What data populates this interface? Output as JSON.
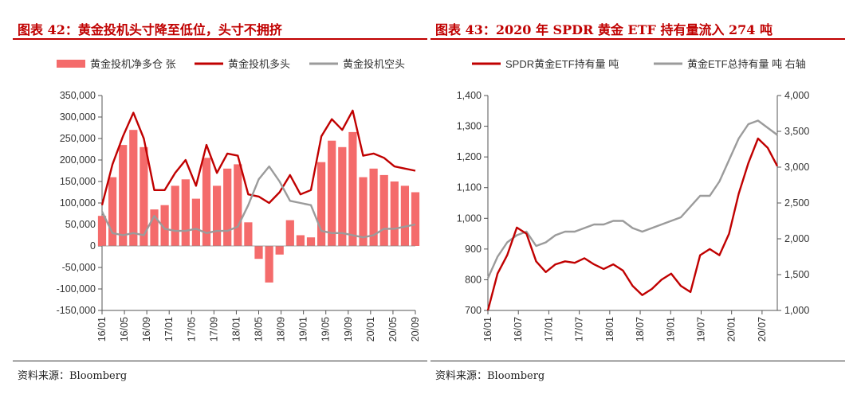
{
  "left": {
    "title": "图表 42：黄金投机头寸降至低位，头寸不拥挤",
    "source": "资料来源：Bloomberg",
    "colors": {
      "net": "#f46b6b",
      "long": "#c00000",
      "short": "#9b9b9b"
    },
    "chart_data": {
      "type": "area+line",
      "title": "图表 42：黄金投机头寸降至低位，头寸不拥挤",
      "legend": [
        "黄金投机净多仓 张",
        "黄金投机多头",
        "黄金投机空头"
      ],
      "legend_position": "top",
      "ylim": [
        -150000,
        350000
      ],
      "y_ticks": [
        "350,000",
        "300,000",
        "250,000",
        "200,000",
        "150,000",
        "100,000",
        "50,000",
        "0",
        "-50,000",
        "-100,000",
        "-150,000"
      ],
      "x_ticks": [
        "16/01",
        "16/05",
        "16/09",
        "17/01",
        "17/05",
        "17/09",
        "18/01",
        "18/05",
        "18/09",
        "19/01",
        "19/05",
        "19/09",
        "20/01",
        "20/05",
        "20/09"
      ],
      "x": [
        "16/01",
        "16/03",
        "16/05",
        "16/07",
        "16/09",
        "16/11",
        "17/01",
        "17/03",
        "17/05",
        "17/07",
        "17/09",
        "17/11",
        "18/01",
        "18/03",
        "18/05",
        "18/07",
        "18/09",
        "18/11",
        "19/01",
        "19/03",
        "19/05",
        "19/07",
        "19/09",
        "19/11",
        "20/01",
        "20/03",
        "20/05",
        "20/07",
        "20/09",
        "20/11",
        "21/01"
      ],
      "series": [
        {
          "name": "黄金投机净多仓 张",
          "values": [
            70000,
            160000,
            235000,
            270000,
            230000,
            85000,
            95000,
            140000,
            155000,
            110000,
            205000,
            140000,
            180000,
            190000,
            55000,
            -30000,
            -85000,
            -20000,
            60000,
            25000,
            20000,
            195000,
            245000,
            230000,
            265000,
            160000,
            180000,
            165000,
            150000,
            140000,
            125000
          ]
        },
        {
          "name": "黄金投机多头",
          "values": [
            95000,
            190000,
            255000,
            310000,
            250000,
            130000,
            130000,
            170000,
            200000,
            140000,
            235000,
            170000,
            215000,
            210000,
            120000,
            115000,
            100000,
            125000,
            165000,
            120000,
            130000,
            255000,
            295000,
            270000,
            315000,
            210000,
            215000,
            205000,
            185000,
            180000,
            175000
          ]
        },
        {
          "name": "黄金投机空头",
          "values": [
            80000,
            30000,
            25000,
            30000,
            25000,
            70000,
            40000,
            35000,
            35000,
            40000,
            30000,
            35000,
            35000,
            45000,
            95000,
            155000,
            185000,
            150000,
            105000,
            100000,
            95000,
            35000,
            30000,
            30000,
            25000,
            20000,
            25000,
            40000,
            40000,
            45000,
            50000
          ]
        }
      ]
    }
  },
  "right": {
    "title": "图表 43：2020 年 SPDR 黄金 ETF 持有量流入 274 吨",
    "source": "资料来源：Bloomberg",
    "colors": {
      "spdr": "#c00000",
      "total": "#9b9b9b"
    },
    "chart_data": {
      "type": "line",
      "title": "图表 43：2020 年 SPDR 黄金 ETF 持有量流入 274 吨",
      "legend": [
        "SPDR黄金ETF持有量 吨",
        "黄金ETF总持有量 吨 右轴"
      ],
      "legend_position": "top",
      "ylim_left": [
        700,
        1400
      ],
      "ylim_right": [
        1000,
        4000
      ],
      "y_ticks_left": [
        "1,400",
        "1,300",
        "1,200",
        "1,100",
        "1,000",
        "900",
        "800",
        "700"
      ],
      "y_ticks_right": [
        "4,000",
        "3,500",
        "3,000",
        "2,500",
        "2,000",
        "1,500",
        "1,000"
      ],
      "x_ticks": [
        "16/01",
        "16/07",
        "17/01",
        "17/07",
        "18/01",
        "18/07",
        "19/01",
        "19/07",
        "20/01",
        "20/07"
      ],
      "x": [
        "16/01",
        "16/03",
        "16/05",
        "16/07",
        "16/09",
        "16/11",
        "17/01",
        "17/03",
        "17/05",
        "17/07",
        "17/09",
        "17/11",
        "18/01",
        "18/03",
        "18/05",
        "18/07",
        "18/09",
        "18/11",
        "19/01",
        "19/03",
        "19/05",
        "19/07",
        "19/09",
        "19/11",
        "20/01",
        "20/03",
        "20/05",
        "20/07",
        "20/09",
        "20/11",
        "21/01"
      ],
      "series": [
        {
          "name": "SPDR黄金ETF持有量 吨",
          "axis": "left",
          "values": [
            700,
            820,
            880,
            970,
            950,
            860,
            825,
            850,
            860,
            855,
            870,
            850,
            835,
            850,
            830,
            780,
            750,
            770,
            800,
            820,
            780,
            760,
            880,
            900,
            880,
            950,
            1080,
            1180,
            1260,
            1230,
            1170
          ]
        },
        {
          "name": "黄金ETF总持有量 吨 右轴",
          "axis": "right",
          "values": [
            1450,
            1750,
            1950,
            2050,
            2100,
            1900,
            1950,
            2050,
            2100,
            2100,
            2150,
            2200,
            2200,
            2250,
            2250,
            2150,
            2100,
            2150,
            2200,
            2250,
            2300,
            2450,
            2600,
            2600,
            2800,
            3100,
            3400,
            3600,
            3650,
            3550,
            3450
          ]
        }
      ]
    }
  }
}
